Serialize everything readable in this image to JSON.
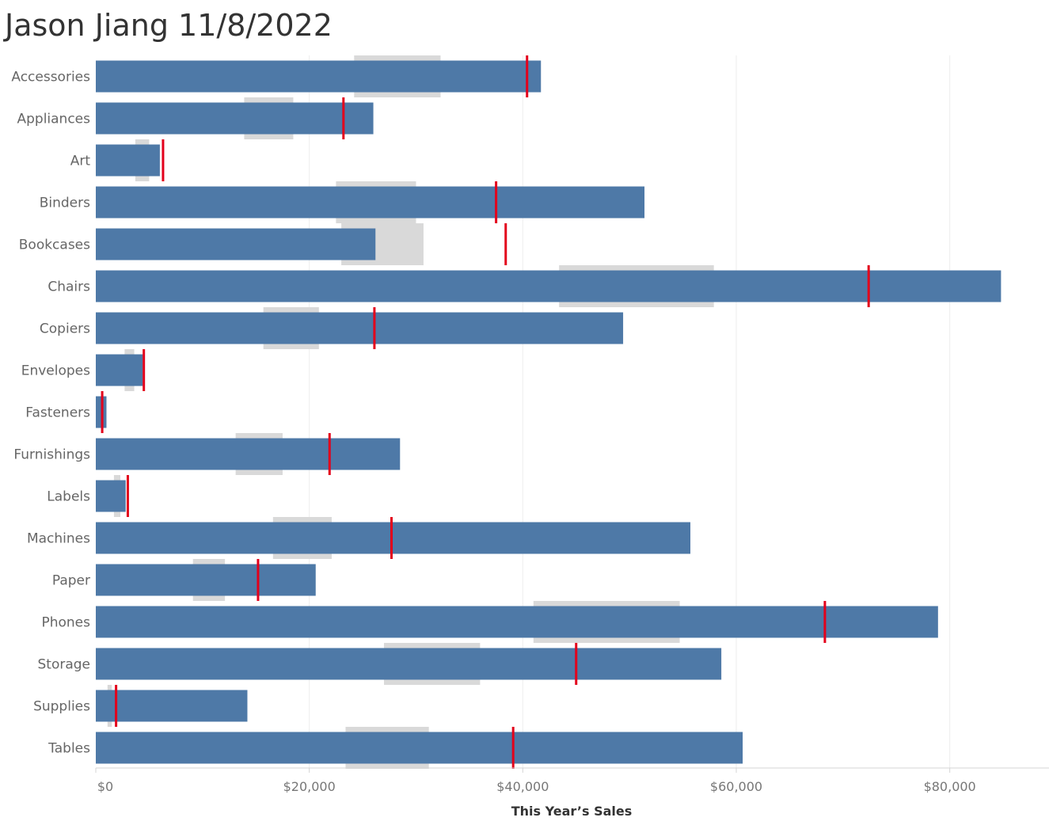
{
  "title": "Jason Jiang 11/8/2022",
  "colors": {
    "bar": "#4e79a7",
    "band": "#d9d9d9",
    "target": "#e3001b",
    "gridline": "#eeeeee"
  },
  "chart_data": {
    "type": "bar",
    "orientation": "horizontal",
    "variant": "bullet",
    "xlabel": "This Year’s Sales",
    "xlim": [
      0,
      89000
    ],
    "x_ticks": [
      0,
      20000,
      40000,
      60000,
      80000
    ],
    "x_tick_labels": [
      "$0",
      "$20,000",
      "$40,000",
      "$60,000",
      "$80,000"
    ],
    "grid": "vertical",
    "categories": [
      "Accessories",
      "Appliances",
      "Art",
      "Binders",
      "Bookcases",
      "Chairs",
      "Copiers",
      "Envelopes",
      "Fasteners",
      "Furnishings",
      "Labels",
      "Machines",
      "Paper",
      "Phones",
      "Storage",
      "Supplies",
      "Tables"
    ],
    "values": [
      41700,
      26000,
      6000,
      51400,
      26200,
      84800,
      49400,
      4400,
      1000,
      28500,
      2800,
      55700,
      20600,
      78900,
      58600,
      14200,
      60600
    ],
    "reference_band": [
      [
        24200,
        32300
      ],
      [
        13900,
        18500
      ],
      [
        3700,
        5000
      ],
      [
        22500,
        30000
      ],
      [
        23000,
        30700
      ],
      [
        43400,
        57900
      ],
      [
        15700,
        20900
      ],
      [
        2700,
        3600
      ],
      [
        500,
        700
      ],
      [
        13100,
        17500
      ],
      [
        1700,
        2300
      ],
      [
        16600,
        22100
      ],
      [
        9100,
        12100
      ],
      [
        41000,
        54700
      ],
      [
        27000,
        36000
      ],
      [
        1100,
        1500
      ],
      [
        23400,
        31200
      ]
    ],
    "target": [
      40400,
      23200,
      6300,
      37500,
      38400,
      72400,
      26100,
      4500,
      600,
      21900,
      3000,
      27700,
      15200,
      68300,
      45000,
      1900,
      39100
    ]
  }
}
